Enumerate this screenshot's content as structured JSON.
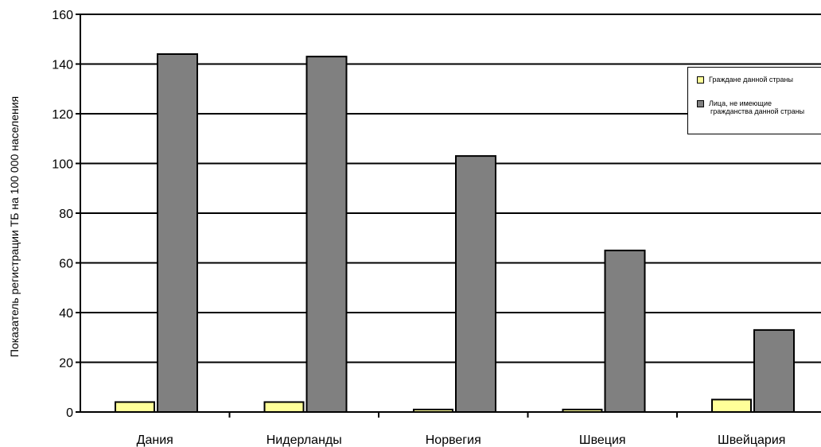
{
  "chart_data": {
    "type": "bar",
    "ylabel": "Показатель регистрации ТБ на  100 000 населения",
    "xlabel": "",
    "ylim": [
      0,
      160
    ],
    "yticks": [
      0,
      20,
      40,
      60,
      80,
      100,
      120,
      140,
      160
    ],
    "categories": [
      "Дания",
      "Нидерланды",
      "Норвегия",
      "Швеция",
      "Швейцария"
    ],
    "series": [
      {
        "name": "Граждане данной страны",
        "color": "#ffff99",
        "values": [
          4,
          4,
          1,
          1,
          5
        ]
      },
      {
        "name": "Лица, не имеющие гражданства данной страны",
        "color": "#808080",
        "values": [
          144,
          143,
          103,
          65,
          33
        ]
      }
    ],
    "grid": true,
    "legend_placement": "top-right"
  },
  "legend": {
    "item1": "Граждане данной страны",
    "item2_line1": "Лица, не имеющие",
    "item2_line2": "гражданства данной страны"
  }
}
